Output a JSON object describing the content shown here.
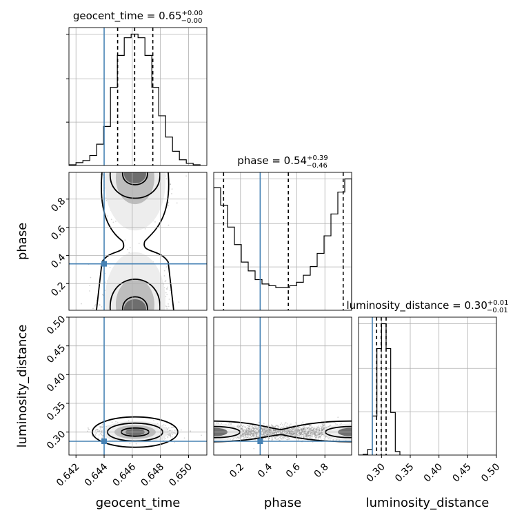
{
  "chart_data": {
    "type": "corner",
    "parameters": [
      "geocent_time",
      "phase",
      "luminosity_distance"
    ],
    "truths": {
      "geocent_time": 0.644,
      "phase": 0.34,
      "luminosity_distance": 0.284
    },
    "axes_labels": {
      "x": [
        "geocent_time",
        "phase",
        "luminosity_distance"
      ],
      "y": [
        "phase",
        "luminosity_distance"
      ]
    },
    "ranges": {
      "geocent_time": [
        0.6415,
        0.6513
      ],
      "phase": [
        0.01,
        0.99
      ],
      "luminosity_distance": [
        0.26,
        0.5
      ]
    },
    "ticks": {
      "geocent_time": [
        "0.642",
        "0.644",
        "0.646",
        "0.648",
        "0.650"
      ],
      "phase": [
        "0.2",
        "0.4",
        "0.6",
        "0.8"
      ],
      "luminosity_distance": [
        "0.30",
        "0.35",
        "0.40",
        "0.45",
        "0.50"
      ]
    },
    "marginals": [
      {
        "parameter": "geocent_time",
        "title_prefix": "geocent_time = 0.65",
        "title_plus": "+0.00",
        "title_minus": "−0.00",
        "quantiles": [
          0.64496,
          0.64617,
          0.64746
        ],
        "bins": [
          0.64151,
          0.642,
          0.64249,
          0.64298,
          0.64347,
          0.64396,
          0.64445,
          0.64494,
          0.64543,
          0.64592,
          0.64641,
          0.6469,
          0.64739,
          0.64788,
          0.64837,
          0.64886,
          0.64935,
          0.64984,
          0.65033,
          0.65082
        ],
        "counts": [
          1,
          4,
          7,
          14,
          30,
          55,
          110,
          155,
          180,
          185,
          180,
          155,
          110,
          70,
          40,
          20,
          8,
          3,
          1
        ]
      },
      {
        "parameter": "phase",
        "title_prefix": "phase = 0.54",
        "title_plus": "+0.39",
        "title_minus": "−0.46",
        "quantiles": [
          0.08,
          0.54,
          0.93
        ],
        "bins": [
          0.01,
          0.059,
          0.108,
          0.157,
          0.206,
          0.255,
          0.304,
          0.353,
          0.402,
          0.451,
          0.5,
          0.549,
          0.598,
          0.647,
          0.696,
          0.745,
          0.794,
          0.843,
          0.892,
          0.941,
          0.99
        ],
        "counts": [
          140,
          120,
          95,
          75,
          55,
          45,
          35,
          30,
          28,
          26,
          26,
          28,
          32,
          40,
          50,
          65,
          85,
          110,
          135,
          150
        ]
      },
      {
        "parameter": "luminosity_distance",
        "title_prefix": "luminosity_distance = 0.30",
        "title_plus": "+0.01",
        "title_minus": "−0.01",
        "quantiles": [
          0.2915,
          0.2995,
          0.308
        ],
        "bins": [
          0.26,
          0.268,
          0.276,
          0.284,
          0.292,
          0.3,
          0.308,
          0.316,
          0.324,
          0.332
        ],
        "counts": [
          0,
          1,
          8,
          55,
          150,
          185,
          150,
          60,
          5
        ]
      }
    ]
  }
}
